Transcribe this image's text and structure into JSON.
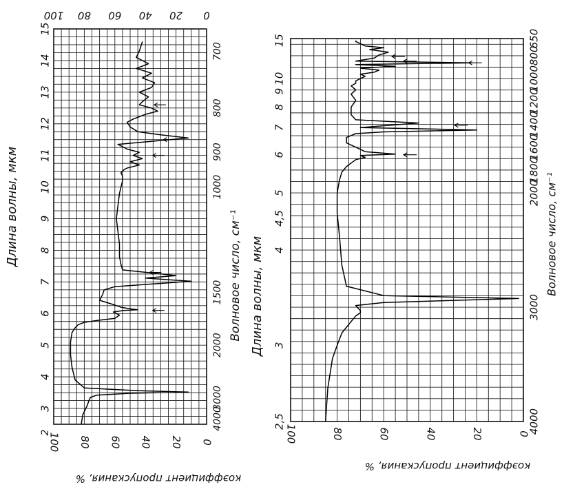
{
  "chart_data": [
    {
      "type": "line",
      "name": "left-ir-spectrum",
      "ylabel": "Длина волны, мкм",
      "xlabel": "коэффициент пропускания, %",
      "wavenumber_label": "Волновое число, см⁻¹",
      "wavelength_ticks": [
        "3",
        "4",
        "5",
        "6",
        "7",
        "8",
        "9",
        "10",
        "11",
        "12",
        "13",
        "14",
        "15"
      ],
      "wavelength_extra_tick": "2",
      "wavenumber_ticks": [
        "4000",
        "3000",
        "2000",
        "1500",
        "1000",
        "900",
        "800",
        "700"
      ],
      "transmission_bottom_ticks": [
        "100",
        "80",
        "60",
        "40",
        "20",
        "0"
      ],
      "transmission_top_ticks": [
        "100",
        "80",
        "60",
        "40",
        "20",
        "0"
      ],
      "xlim": [
        100,
        0
      ],
      "ylim": [
        2.5,
        15
      ],
      "series": [
        {
          "x": [
            82,
            81,
            79,
            78,
            77,
            76,
            72,
            50,
            12,
            45,
            80,
            86,
            88,
            89,
            89,
            88,
            86,
            84,
            80,
            72,
            60,
            57,
            61,
            54,
            45,
            50,
            56,
            62,
            70,
            68,
            67,
            60,
            40,
            10,
            40,
            20,
            35,
            55,
            56,
            57,
            57,
            58,
            59,
            58,
            57,
            56,
            55,
            55,
            56,
            54,
            52,
            48,
            44,
            50,
            42,
            48,
            44,
            52,
            58,
            35,
            12,
            30,
            45,
            50,
            52,
            48,
            40,
            32,
            36,
            44,
            42,
            38,
            44,
            36,
            34,
            42,
            36,
            46,
            38,
            46,
            44,
            42
          ],
          "y": [
            2.5,
            2.8,
            3.0,
            3.1,
            3.25,
            3.35,
            3.42,
            3.48,
            3.52,
            3.56,
            3.65,
            3.9,
            4.3,
            4.7,
            5.1,
            5.4,
            5.55,
            5.65,
            5.72,
            5.78,
            5.85,
            5.95,
            6.05,
            6.1,
            6.12,
            6.15,
            6.2,
            6.3,
            6.42,
            6.6,
            6.75,
            6.85,
            6.92,
            7.02,
            7.12,
            7.2,
            7.28,
            7.38,
            7.55,
            7.8,
            8.2,
            8.6,
            9.0,
            9.4,
            9.8,
            10.0,
            10.2,
            10.35,
            10.45,
            10.55,
            10.6,
            10.65,
            10.7,
            10.8,
            10.9,
            11.0,
            11.1,
            11.2,
            11.35,
            11.45,
            11.55,
            11.65,
            11.75,
            11.9,
            12.05,
            12.15,
            12.3,
            12.4,
            12.5,
            12.6,
            12.7,
            12.85,
            13.0,
            13.15,
            13.3,
            13.45,
            13.6,
            13.75,
            13.9,
            14.1,
            14.3,
            14.6
          ]
        }
      ],
      "arrow_labels": [
        {
          "x": 33,
          "y": 6.1
        },
        {
          "x": 35,
          "y": 7.3
        },
        {
          "x": 33,
          "y": 11.0
        },
        {
          "x": 26,
          "y": 11.5
        },
        {
          "x": 32,
          "y": 12.6
        }
      ]
    },
    {
      "type": "line",
      "name": "right-ir-spectrum",
      "ylabel": "Длина волны, мкм",
      "xlabel": "коэффициент пропускания, %",
      "wavenumber_label": "Волновое число, см⁻¹",
      "wavelength_ticks": [
        "2,5",
        "3",
        "4",
        "4,5",
        "5",
        "6",
        "7",
        "8",
        "9",
        "10",
        "15"
      ],
      "wavenumber_ticks": [
        "4000",
        "3000",
        "2000",
        "1800",
        "1600",
        "1400",
        "1200",
        "1000",
        "800",
        "650"
      ],
      "transmission_ticks": [
        "100",
        "80",
        "60",
        "40",
        "20",
        "0"
      ],
      "xlim": [
        100,
        0
      ],
      "series": [
        {
          "x": [
            85,
            84,
            82,
            80,
            78,
            74,
            72,
            70,
            70,
            72,
            60,
            2,
            60,
            76,
            78,
            79,
            80,
            80,
            79,
            78,
            76,
            74,
            72,
            68,
            70,
            55,
            68,
            72,
            76,
            76,
            72,
            60,
            20,
            70,
            45,
            72,
            74,
            74,
            72,
            74,
            72,
            74,
            72,
            72,
            70,
            68,
            70,
            64,
            62,
            70,
            55,
            72,
            22,
            72,
            64,
            62,
            58,
            66,
            60,
            68,
            70,
            72,
            72
          ],
          "wavelength": [
            2.5,
            2.7,
            2.9,
            3.0,
            3.1,
            3.2,
            3.25,
            3.28,
            3.3,
            3.35,
            3.38,
            3.42,
            3.45,
            3.55,
            3.8,
            4.2,
            4.6,
            5.0,
            5.3,
            5.5,
            5.65,
            5.75,
            5.85,
            5.92,
            5.98,
            6.02,
            6.1,
            6.25,
            6.4,
            6.6,
            6.75,
            6.82,
            6.9,
            7.0,
            7.2,
            7.35,
            7.6,
            8.0,
            8.4,
            8.8,
            9.1,
            9.4,
            9.6,
            9.8,
            10.0,
            10.2,
            10.4,
            10.6,
            10.8,
            11.0,
            11.2,
            11.4,
            11.6,
            11.8,
            12.2,
            12.6,
            13.0,
            13.4,
            13.7,
            14.0,
            14.4,
            14.8,
            15.0
          ]
        }
      ],
      "arrow_labels": [
        {
          "x": 50,
          "wavelength": 6.0
        },
        {
          "x": 28,
          "wavelength": 7.1
        },
        {
          "x": 22,
          "wavelength": 11.6
        },
        {
          "x": 50,
          "wavelength": 11.8
        },
        {
          "x": 55,
          "wavelength": 12.4
        }
      ]
    }
  ]
}
